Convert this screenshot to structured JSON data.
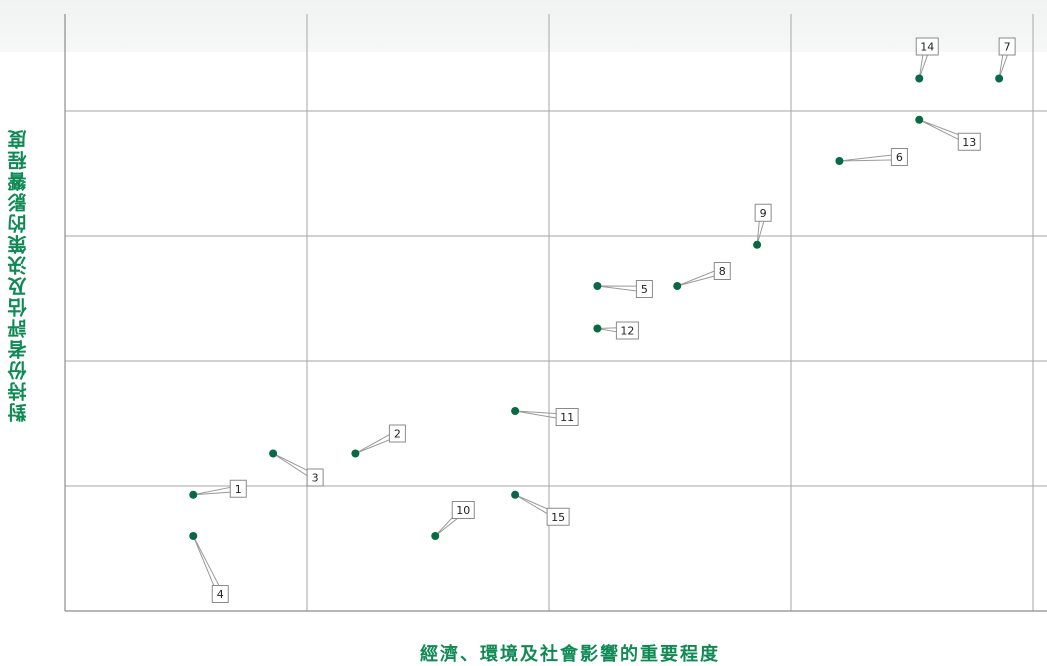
{
  "chart_data": {
    "type": "scatter",
    "title": "",
    "xlabel": "經濟、環境及社會影響的重要程度",
    "ylabel": "對持份者評估及決策的影響程度",
    "xlim": [
      0,
      4.3
    ],
    "ylim": [
      0,
      4.8
    ],
    "grid": true,
    "color": "#076a45",
    "points": [
      {
        "label": "1",
        "x": 0.53,
        "y": 0.93
      },
      {
        "label": "2",
        "x": 1.2,
        "y": 1.26
      },
      {
        "label": "3",
        "x": 0.86,
        "y": 1.26
      },
      {
        "label": "4",
        "x": 0.53,
        "y": 0.6
      },
      {
        "label": "5",
        "x": 2.2,
        "y": 2.6
      },
      {
        "label": "6",
        "x": 3.2,
        "y": 3.6
      },
      {
        "label": "7",
        "x": 3.86,
        "y": 4.26
      },
      {
        "label": "8",
        "x": 2.53,
        "y": 2.6
      },
      {
        "label": "9",
        "x": 2.86,
        "y": 2.93
      },
      {
        "label": "10",
        "x": 1.53,
        "y": 0.6
      },
      {
        "label": "11",
        "x": 1.86,
        "y": 1.6
      },
      {
        "label": "12",
        "x": 2.2,
        "y": 2.26
      },
      {
        "label": "13",
        "x": 3.53,
        "y": 3.93
      },
      {
        "label": "14",
        "x": 3.53,
        "y": 4.26
      },
      {
        "label": "15",
        "x": 1.86,
        "y": 0.93
      }
    ]
  }
}
